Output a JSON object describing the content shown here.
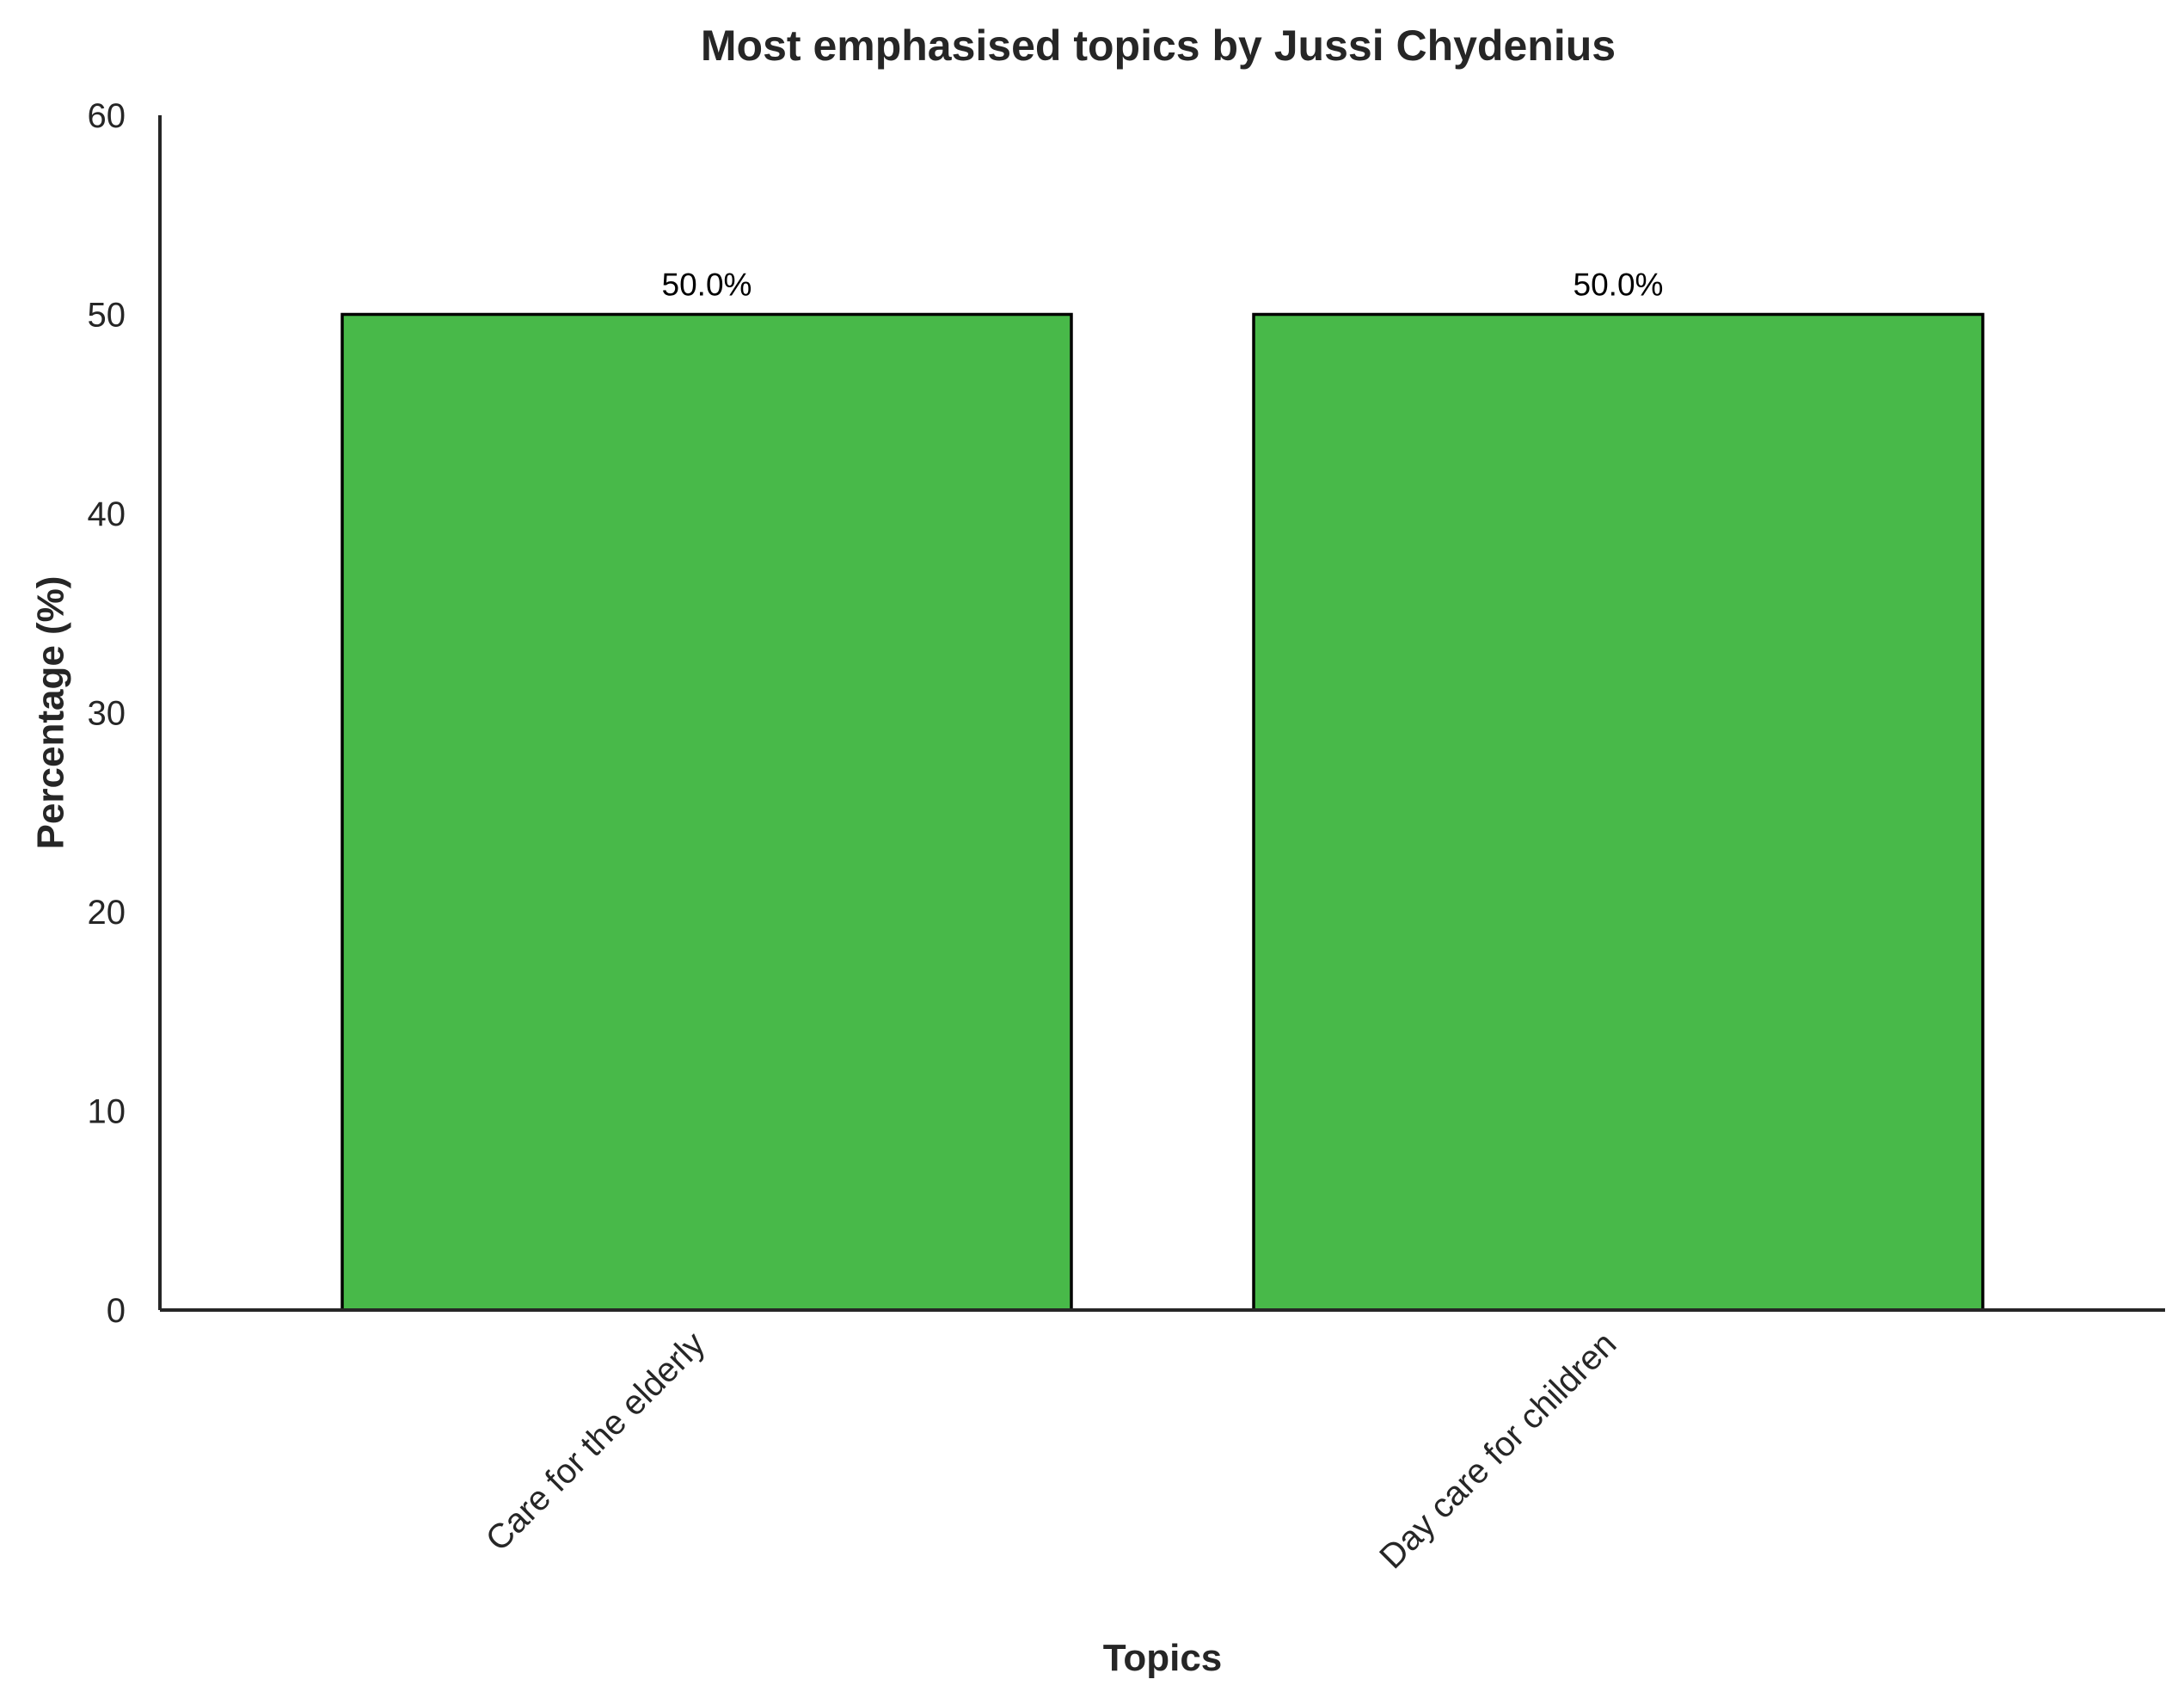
{
  "chart_data": {
    "type": "bar",
    "title": "Most emphasised topics by Jussi Chydenius",
    "xlabel": "Topics",
    "ylabel": "Percentage (%)",
    "categories": [
      "Care for the elderly",
      "Day care for children"
    ],
    "values": [
      50.0,
      50.0
    ],
    "data_labels": [
      "50.0%",
      "50.0%"
    ],
    "ylim": [
      0,
      60
    ],
    "yticks": [
      0,
      10,
      20,
      30,
      40,
      50,
      60
    ],
    "grid": false,
    "legend": "none",
    "bar_color": "#48b949",
    "bar_edge_color": "#000000",
    "axis_color": "#262626"
  }
}
